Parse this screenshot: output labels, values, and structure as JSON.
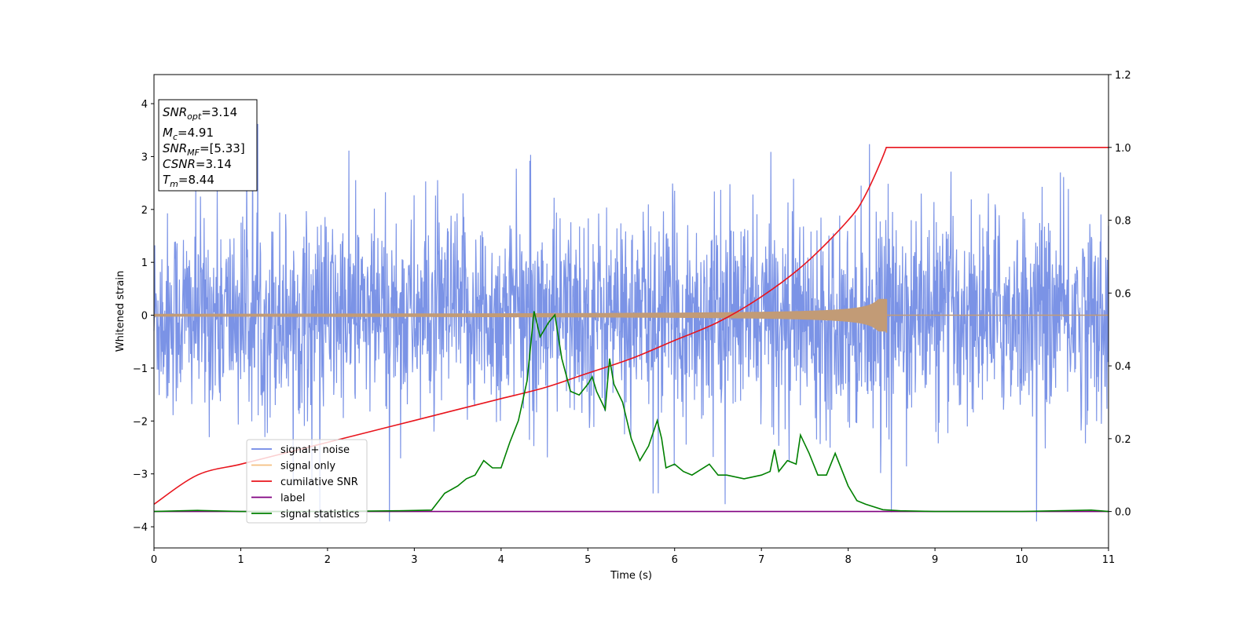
{
  "chart_data": {
    "type": "line",
    "xlabel": "Time (s)",
    "ylabel": "Whitened strain",
    "xlim": [
      0,
      11
    ],
    "ylim": [
      -4.4,
      4.55
    ],
    "y2lim": [
      -0.1,
      1.2
    ],
    "grid": false,
    "legend_position": "lower-left",
    "xticks": [
      "0",
      "1",
      "2",
      "3",
      "4",
      "5",
      "6",
      "7",
      "8",
      "9",
      "10",
      "11"
    ],
    "yticks": [
      "−4",
      "−3",
      "−2",
      "−1",
      "0",
      "1",
      "2",
      "3",
      "4"
    ],
    "y2ticks": [
      "0.0",
      "0.2",
      "0.4",
      "0.6",
      "0.8",
      "1.0",
      "1.2"
    ],
    "annotation": {
      "lines": [
        {
          "base": "SNR",
          "sub": "opt",
          "value": "=3.14"
        },
        {
          "base": "M",
          "sub": "c",
          "value": "=4.91"
        },
        {
          "base": "SNR",
          "sub": "MF",
          "value": "=[5.33]"
        },
        {
          "base": "CSNR",
          "sub": "",
          "value": "=3.14"
        },
        {
          "base": "T",
          "sub": "m",
          "value": "=8.44"
        }
      ]
    },
    "series": [
      {
        "name": "signal+ noise",
        "color": "#7b93e6",
        "axis": "left",
        "style": "noise",
        "amplitude_envelope": 2.3,
        "x_range": [
          0,
          11
        ]
      },
      {
        "name": "signal only",
        "color": "#f5bf80",
        "axis": "left",
        "style": "chirp",
        "merger_time": 8.44,
        "peak_amplitude": 0.3
      },
      {
        "name": "cumilative SNR",
        "color": "#e8141c",
        "axis": "right",
        "x": [
          0,
          0.5,
          1,
          1.5,
          2,
          2.5,
          3,
          3.5,
          4,
          4.5,
          5,
          5.5,
          6,
          6.5,
          7,
          7.5,
          8,
          8.2,
          8.44,
          9,
          10,
          11
        ],
        "values": [
          0.02,
          0.1,
          0.13,
          0.16,
          0.19,
          0.22,
          0.25,
          0.28,
          0.31,
          0.34,
          0.38,
          0.42,
          0.47,
          0.52,
          0.59,
          0.68,
          0.8,
          0.87,
          1.0,
          1.0,
          1.0,
          1.0
        ]
      },
      {
        "name": "label",
        "color": "#800080",
        "axis": "right",
        "x": [
          0,
          11
        ],
        "values": [
          0.0,
          0.0
        ]
      },
      {
        "name": "signal statistics",
        "color": "#008000",
        "axis": "right",
        "x": [
          0,
          0.5,
          1,
          2,
          2.8,
          3.2,
          3.35,
          3.5,
          3.6,
          3.7,
          3.8,
          3.9,
          4.0,
          4.1,
          4.2,
          4.3,
          4.38,
          4.45,
          4.55,
          4.62,
          4.7,
          4.8,
          4.9,
          5.0,
          5.05,
          5.1,
          5.2,
          5.25,
          5.3,
          5.4,
          5.5,
          5.6,
          5.7,
          5.8,
          5.85,
          5.9,
          6.0,
          6.1,
          6.2,
          6.4,
          6.5,
          6.6,
          6.8,
          7.0,
          7.1,
          7.15,
          7.2,
          7.3,
          7.4,
          7.45,
          7.55,
          7.65,
          7.75,
          7.85,
          8.0,
          8.1,
          8.2,
          8.4,
          8.6,
          9,
          10,
          10.8,
          11
        ],
        "values": [
          0.0,
          0.003,
          0.0,
          0.0,
          0.002,
          0.004,
          0.05,
          0.07,
          0.09,
          0.1,
          0.14,
          0.12,
          0.12,
          0.19,
          0.25,
          0.36,
          0.55,
          0.48,
          0.52,
          0.54,
          0.42,
          0.33,
          0.32,
          0.35,
          0.37,
          0.33,
          0.28,
          0.42,
          0.35,
          0.3,
          0.2,
          0.14,
          0.18,
          0.25,
          0.2,
          0.12,
          0.13,
          0.11,
          0.1,
          0.13,
          0.1,
          0.1,
          0.09,
          0.1,
          0.11,
          0.17,
          0.11,
          0.14,
          0.13,
          0.21,
          0.16,
          0.1,
          0.1,
          0.16,
          0.07,
          0.03,
          0.02,
          0.005,
          0.002,
          0.0,
          0.0,
          0.004,
          0.0
        ]
      }
    ]
  }
}
